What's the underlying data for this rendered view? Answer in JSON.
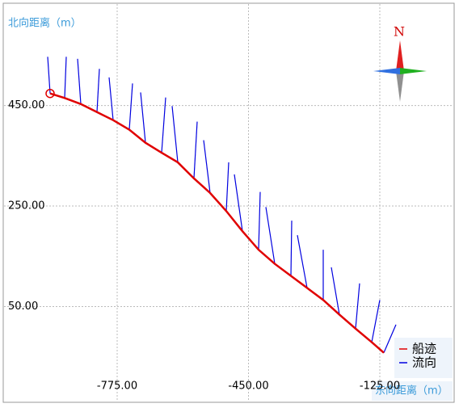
{
  "chart_data": {
    "type": "vector",
    "y_label": "北向距离（m）",
    "x_label": "东向距离（m）",
    "compass": "N",
    "xlim": [
      -1055,
      55
    ],
    "ylim": [
      -139,
      652
    ],
    "xticks": [
      {
        "value": -775,
        "label": "-775.00"
      },
      {
        "value": -450,
        "label": "-450.00"
      },
      {
        "value": -125,
        "label": "-125.00"
      }
    ],
    "yticks": [
      {
        "value": 450,
        "label": "450.00"
      },
      {
        "value": 250,
        "label": "250.00"
      },
      {
        "value": 50,
        "label": "50.00"
      }
    ],
    "grid": true,
    "legend": "bottom-right",
    "series": [
      {
        "name": "船迹",
        "color": "#e00000",
        "x": [
          -941,
          -905,
          -865,
          -825,
          -785,
          -745,
          -705,
          -665,
          -625,
          -585,
          -545,
          -505,
          -465,
          -425,
          -385,
          -345,
          -305,
          -265,
          -225,
          -185,
          -145,
          -115
        ],
        "y": [
          474,
          465,
          453,
          437,
          421,
          402,
          376,
          356,
          337,
          305,
          276,
          240,
          200,
          163,
          135,
          111,
          87,
          63,
          34,
          6,
          -21,
          -42
        ]
      },
      {
        "name": "流向",
        "color": "#0000e0",
        "u": [
          -6,
          4,
          -8,
          6,
          -10,
          8,
          -12,
          10,
          -14,
          8,
          -16,
          6,
          -20,
          4,
          -22,
          2,
          -24,
          0,
          -20,
          10,
          20,
          30
        ],
        "v": [
          73,
          82,
          90,
          86,
          85,
          92,
          100,
          110,
          112,
          113,
          105,
          97,
          113,
          115,
          113,
          110,
          105,
          100,
          94,
          90,
          84,
          56
        ]
      }
    ]
  }
}
